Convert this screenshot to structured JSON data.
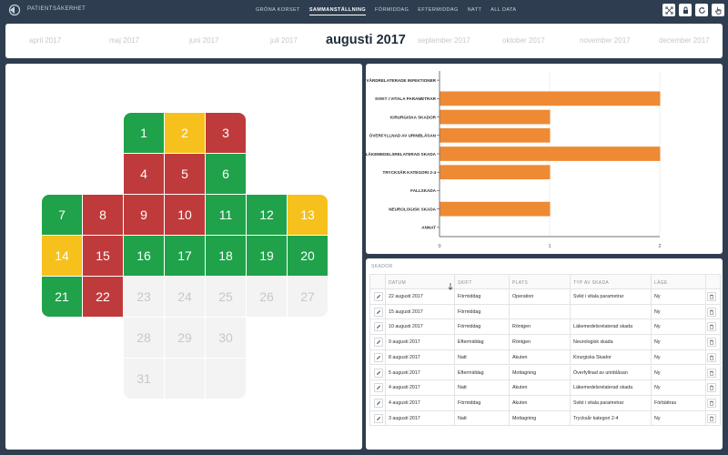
{
  "app": {
    "title": "PATIENTSÄKERHET"
  },
  "nav": {
    "tabs": [
      {
        "label": "GRÖNA KORSET",
        "active": false
      },
      {
        "label": "SAMMANSTÄLLNING",
        "active": true
      },
      {
        "label": "FÖRMIDDAG",
        "active": false
      },
      {
        "label": "EFTERMIDDAG",
        "active": false
      },
      {
        "label": "NATT",
        "active": false
      },
      {
        "label": "ALL DATA",
        "active": false
      }
    ]
  },
  "toolbar": {
    "icons": [
      "fullscreen-icon",
      "lock-icon",
      "refresh-icon",
      "hand-pointer-icon"
    ]
  },
  "months": [
    "april 2017",
    "maj 2017",
    "juni 2017",
    "juli 2017",
    "augusti 2017",
    "september 2017",
    "oktober 2017",
    "november 2017",
    "december 2017"
  ],
  "current_month": "augusti 2017",
  "calendar": {
    "days": [
      {
        "n": "1",
        "status": "green"
      },
      {
        "n": "2",
        "status": "yellow"
      },
      {
        "n": "3",
        "status": "red"
      },
      {
        "n": "4",
        "status": "red"
      },
      {
        "n": "5",
        "status": "red"
      },
      {
        "n": "6",
        "status": "green"
      },
      {
        "n": "7",
        "status": "green"
      },
      {
        "n": "8",
        "status": "red"
      },
      {
        "n": "9",
        "status": "red"
      },
      {
        "n": "10",
        "status": "red"
      },
      {
        "n": "11",
        "status": "green"
      },
      {
        "n": "12",
        "status": "green"
      },
      {
        "n": "13",
        "status": "yellow"
      },
      {
        "n": "14",
        "status": "yellow"
      },
      {
        "n": "15",
        "status": "red"
      },
      {
        "n": "16",
        "status": "green"
      },
      {
        "n": "17",
        "status": "green"
      },
      {
        "n": "18",
        "status": "green"
      },
      {
        "n": "19",
        "status": "green"
      },
      {
        "n": "20",
        "status": "green"
      },
      {
        "n": "21",
        "status": "green"
      },
      {
        "n": "22",
        "status": "red"
      },
      {
        "n": "23",
        "status": "future"
      },
      {
        "n": "24",
        "status": "future"
      },
      {
        "n": "25",
        "status": "future"
      },
      {
        "n": "26",
        "status": "future"
      },
      {
        "n": "27",
        "status": "future"
      },
      {
        "n": "28",
        "status": "future"
      },
      {
        "n": "29",
        "status": "future"
      },
      {
        "n": "30",
        "status": "future"
      },
      {
        "n": "31",
        "status": "future"
      }
    ],
    "colors": {
      "green": "#1fa24a",
      "yellow": "#f7c11d",
      "red": "#bf3b3b",
      "future": "#f3f3f3"
    }
  },
  "chart_data": {
    "type": "bar",
    "orientation": "horizontal",
    "categories": [
      "VÅRDRELATERADE INFEKTIONER",
      "SVIKT I VITALA PARAMETRAR",
      "KIRURGISKA SKADOR",
      "ÖVERFYLLNAD AV URINBLÅSAN",
      "LÄKEMEDELSRELATERAD SKADA",
      "TRYCKSÅR KATEGORI 2-4",
      "FALLSKADA",
      "NEUROLOGISK SKADA",
      "ANNAT"
    ],
    "values": [
      0,
      2,
      1,
      1,
      2,
      1,
      0,
      1,
      0
    ],
    "xlim": [
      0,
      2
    ],
    "xticks": [
      "0",
      "1",
      "2"
    ],
    "color": "#ee8a34",
    "grid": true
  },
  "table": {
    "title": "SKADOR",
    "headers": [
      "DATUM",
      "SKIFT",
      "PLATS",
      "TYP AV SKADA",
      "LÄGE"
    ],
    "rows": [
      [
        "22 augusti 2017",
        "Förmiddag",
        "Operation",
        "Svikt i vitala parametrar",
        "Ny"
      ],
      [
        "15 augusti 2017",
        "Förmiddag",
        "",
        "",
        "Ny"
      ],
      [
        "10 augusti 2017",
        "Förmiddag",
        "Röntgen",
        "Läkemedelsrelaterad skada",
        "Ny"
      ],
      [
        "9 augusti 2017",
        "Eftermiddag",
        "Röntgen",
        "Neurologisk skada",
        "Ny"
      ],
      [
        "8 augusti 2017",
        "Natt",
        "Akuten",
        "Kirurgiska Skador",
        "Ny"
      ],
      [
        "5 augusti 2017",
        "Eftermiddag",
        "Mottagning",
        "Överfyllnad av urinblåsan",
        "Ny"
      ],
      [
        "4 augusti 2017",
        "Natt",
        "Akuten",
        "Läkemedelsrelaterad skada",
        "Ny"
      ],
      [
        "4 augusti 2017",
        "Förmiddag",
        "Akuten",
        "Svikt i vitala parametrar",
        "Förbättras"
      ],
      [
        "3 augusti 2017",
        "Natt",
        "Mottagning",
        "Trycksår kategori 2-4",
        "Ny"
      ]
    ]
  }
}
